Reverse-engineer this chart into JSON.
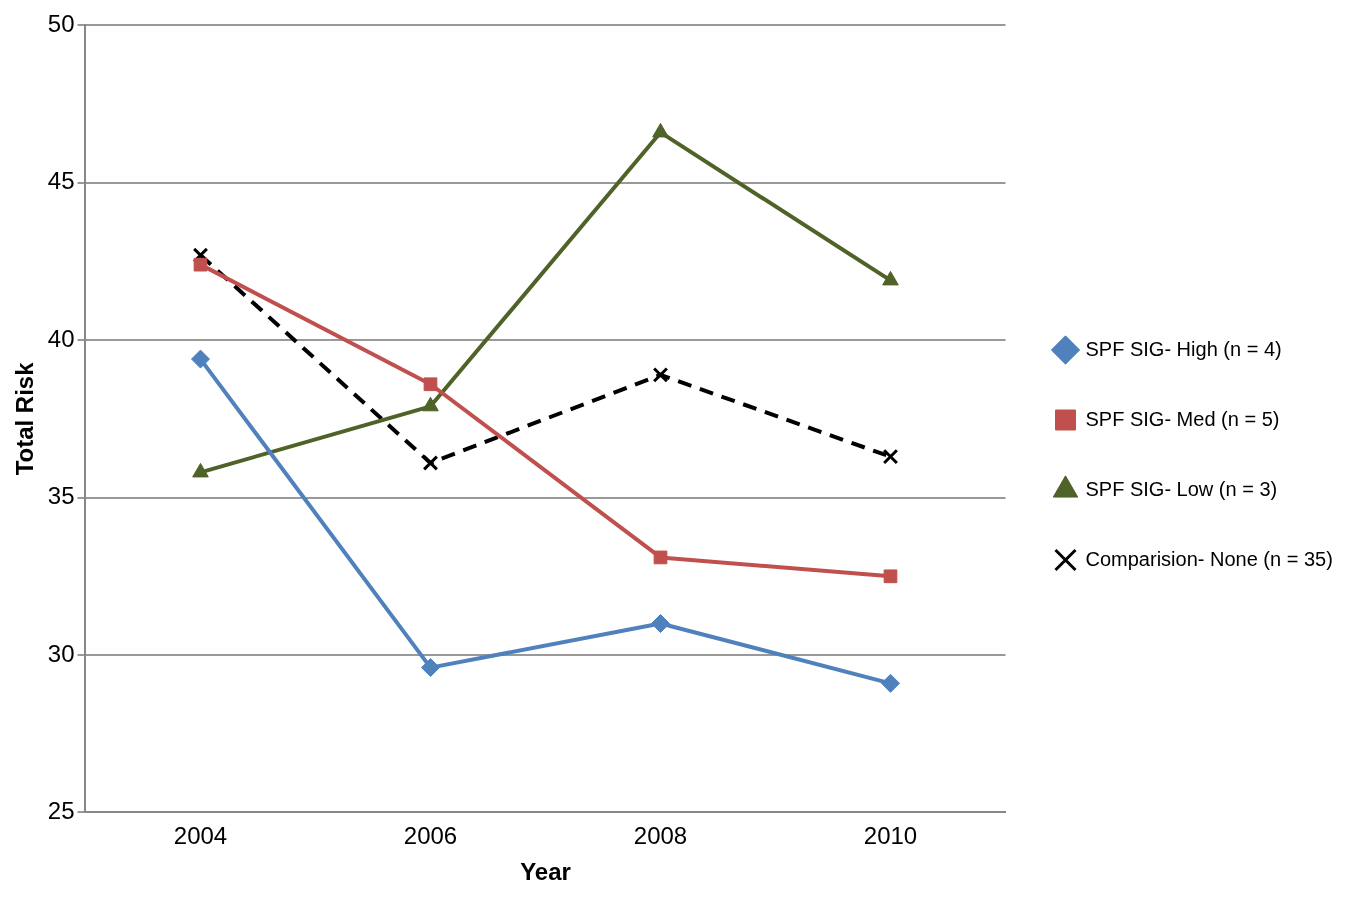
{
  "chart_data": {
    "type": "line",
    "xlabel": "Year",
    "ylabel": "Total Risk",
    "categories": [
      "2004",
      "2006",
      "2008",
      "2010"
    ],
    "series": [
      {
        "name": "SPF SIG- High (n = 4)",
        "color": "#4f81bd",
        "marker": "diamond",
        "values": [
          39.4,
          29.6,
          31.0,
          29.1
        ]
      },
      {
        "name": "SPF SIG- Med (n = 5)",
        "color": "#c0504d",
        "marker": "square",
        "values": [
          42.4,
          38.6,
          33.1,
          32.5
        ]
      },
      {
        "name": "SPF SIG- Low (n = 3)",
        "color": "#4f6228",
        "marker": "triangle",
        "values": [
          35.8,
          37.9,
          46.6,
          41.9
        ]
      },
      {
        "name": "Comparision- None (n = 35)",
        "color": "#000000",
        "marker": "cross",
        "line_style": "dashed",
        "values": [
          42.7,
          36.1,
          38.9,
          36.3
        ]
      }
    ],
    "ylim": [
      25,
      50
    ],
    "yticks": [
      25,
      30,
      35,
      40,
      45,
      50
    ],
    "grid": "y",
    "legend": "right"
  }
}
